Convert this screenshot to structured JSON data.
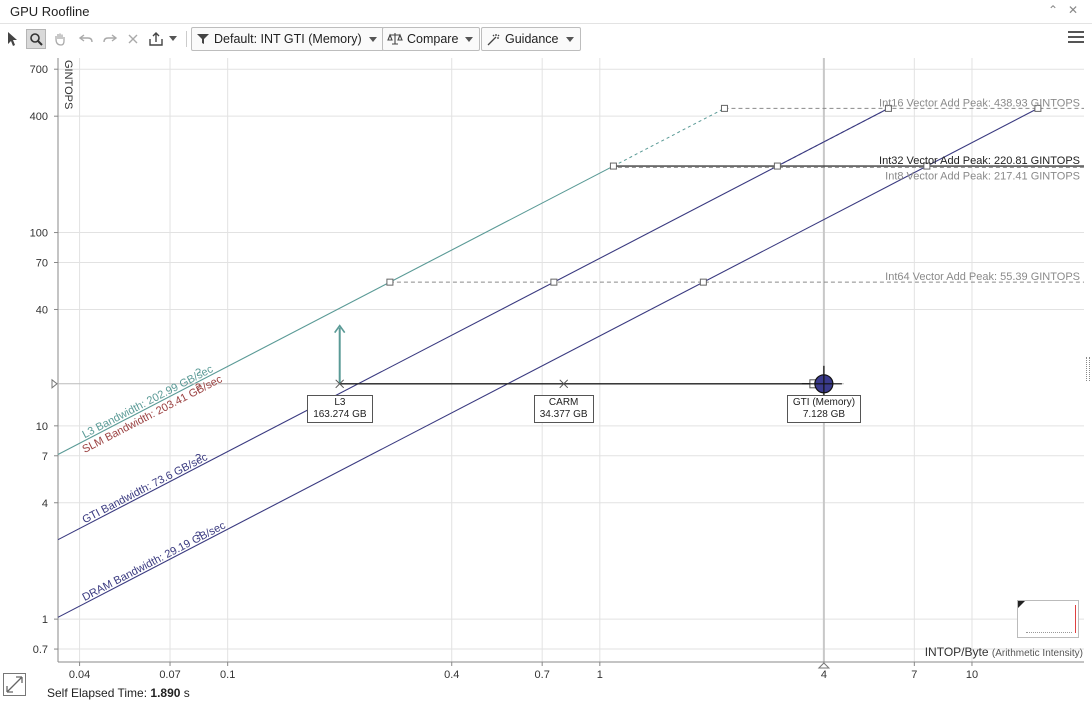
{
  "window": {
    "title": "GPU Roofline"
  },
  "toolbar": {
    "filter_label": "Default: INT GTI (Memory)",
    "compare_label": "Compare",
    "guidance_label": "Guidance"
  },
  "chart_data": {
    "type": "scatter",
    "xscale": "log",
    "yscale": "log",
    "xlim": [
      0.035,
      20
    ],
    "ylim": [
      0.6,
      800
    ],
    "xlabel": "INTOP/Byte",
    "xlabel_note": "(Arithmetic Intensity)",
    "ylabel": "GINTOPS",
    "x_ticks": [
      0.04,
      0.07,
      0.1,
      0.4,
      0.7,
      1,
      4,
      7,
      10
    ],
    "x_tick_labels": [
      "0.04",
      "0.07",
      "0.1",
      "0.4",
      "0.7",
      "1",
      "4",
      "7",
      "10"
    ],
    "y_ticks": [
      0.7,
      1,
      4,
      7,
      10,
      40,
      70,
      100,
      400,
      700
    ],
    "y_tick_labels": [
      "0.7",
      "1",
      "4",
      "7",
      "10",
      "40",
      "70",
      "100",
      "400",
      "700"
    ],
    "grid": true,
    "compute_roofs": [
      {
        "label": "Int16 Vector Add Peak: 438.93 GINTOPS",
        "value": 438.93,
        "style": "dashed",
        "color": "#8a8a8a",
        "text_color": "#8a8a8a"
      },
      {
        "label": "Int32 Vector Add Peak: 220.81 GINTOPS",
        "value": 220.81,
        "style": "solid",
        "color": "#3a3a3a",
        "text_color": "#222222"
      },
      {
        "label": "Int8 Vector Add Peak: 217.41 GINTOPS",
        "value": 217.41,
        "style": "dashed",
        "color": "#8a8a8a",
        "text_color": "#8a8a8a"
      },
      {
        "label": "Int64 Vector Add Peak: 55.39 GINTOPS",
        "value": 55.39,
        "style": "dashed",
        "color": "#8a8a8a",
        "text_color": "#8a8a8a"
      }
    ],
    "memory_roofs": [
      {
        "label": "L3 Bandwidth: 202.99 GB/sec",
        "bandwidth": 202.99,
        "color": "#5a9a96"
      },
      {
        "label": "SLM Bandwidth: 203.41 GB/sec",
        "bandwidth": 203.41,
        "color": "#9a4040"
      },
      {
        "label": "GTI Bandwidth: 73.6 GB/sec",
        "bandwidth": 73.6,
        "color": "#3a3a80"
      },
      {
        "label": "DRAM Bandwidth: 29.19 GB/sec",
        "bandwidth": 29.19,
        "color": "#3a3a80"
      }
    ],
    "kernel": {
      "performance": 16.5,
      "points": [
        {
          "name": "L3",
          "traffic": "163.274 GB",
          "ai": 0.2
        },
        {
          "name": "CARM",
          "traffic": "34.377 GB",
          "ai": 0.8
        },
        {
          "name": "GTI (Memory)",
          "traffic": "7.128 GB",
          "ai": 4.0
        }
      ],
      "guide_top": 33
    },
    "help_mark": "?",
    "colors": {
      "grid": "#e2e2e2",
      "axis": "#888888",
      "kernel_dot": "#3a3a8c",
      "l3_arrow": "#5a9a96"
    }
  },
  "status": {
    "label": "Self Elapsed Time:",
    "value": "1.890",
    "unit": "s"
  }
}
